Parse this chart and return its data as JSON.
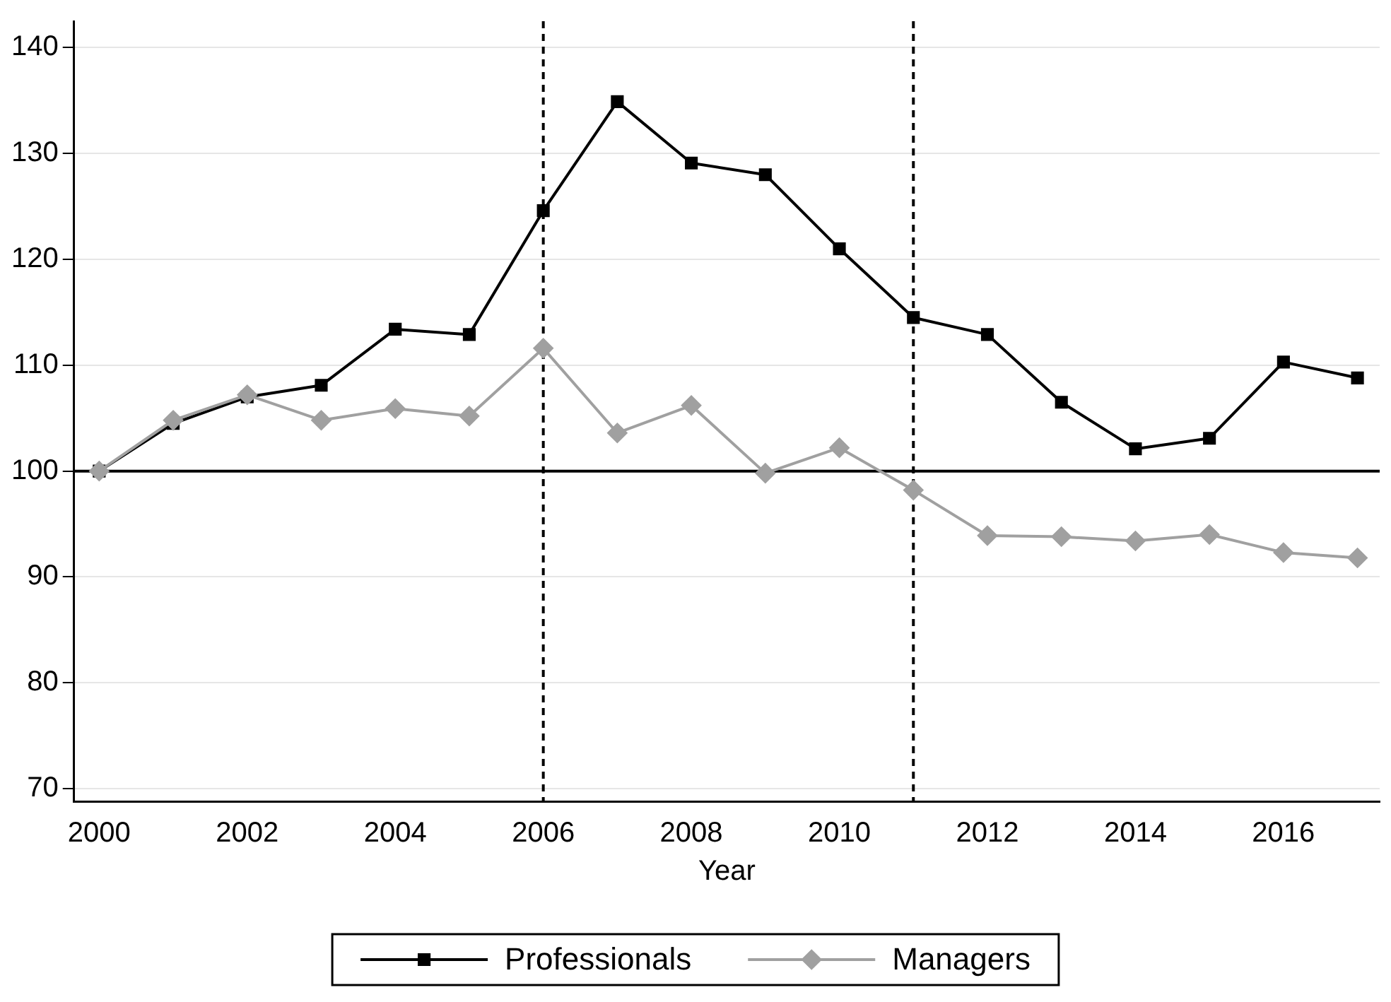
{
  "chart_data": {
    "type": "line",
    "xlabel": "Year",
    "x": [
      2000,
      2001,
      2002,
      2003,
      2004,
      2005,
      2006,
      2007,
      2008,
      2009,
      2010,
      2011,
      2012,
      2013,
      2014,
      2015,
      2016,
      2017
    ],
    "series": [
      {
        "name": "Professionals",
        "color": "#000000",
        "marker": "square",
        "values": [
          100,
          104.5,
          107,
          108.1,
          113.4,
          112.9,
          124.6,
          134.9,
          129.1,
          128,
          121,
          114.5,
          112.9,
          106.5,
          102.1,
          103.1,
          110.3,
          108.8
        ]
      },
      {
        "name": "Managers",
        "color": "#a0a0a0",
        "marker": "diamond",
        "values": [
          100,
          104.8,
          107.2,
          104.8,
          105.9,
          105.2,
          111.6,
          103.6,
          106.2,
          99.8,
          102.2,
          98.2,
          93.9,
          93.8,
          93.4,
          94,
          92.3,
          91.8
        ]
      }
    ],
    "xlim": [
      1999.66,
      2017.3
    ],
    "xticks": [
      2000,
      2002,
      2004,
      2006,
      2008,
      2010,
      2012,
      2014,
      2016
    ],
    "ylim": [
      68.8,
      142.5
    ],
    "yticks": [
      70,
      80,
      90,
      100,
      110,
      120,
      130,
      140
    ],
    "ref_lines": [
      {
        "axis": "x",
        "value": 2006,
        "line_style": "dashed",
        "color": "#000000"
      },
      {
        "axis": "x",
        "value": 2011,
        "line_style": "dashed",
        "color": "#000000"
      },
      {
        "axis": "y",
        "value": 100,
        "line_style": "solid",
        "color": "#000000"
      }
    ],
    "grid": "y",
    "legend": "bottom",
    "line_style": "solid"
  }
}
